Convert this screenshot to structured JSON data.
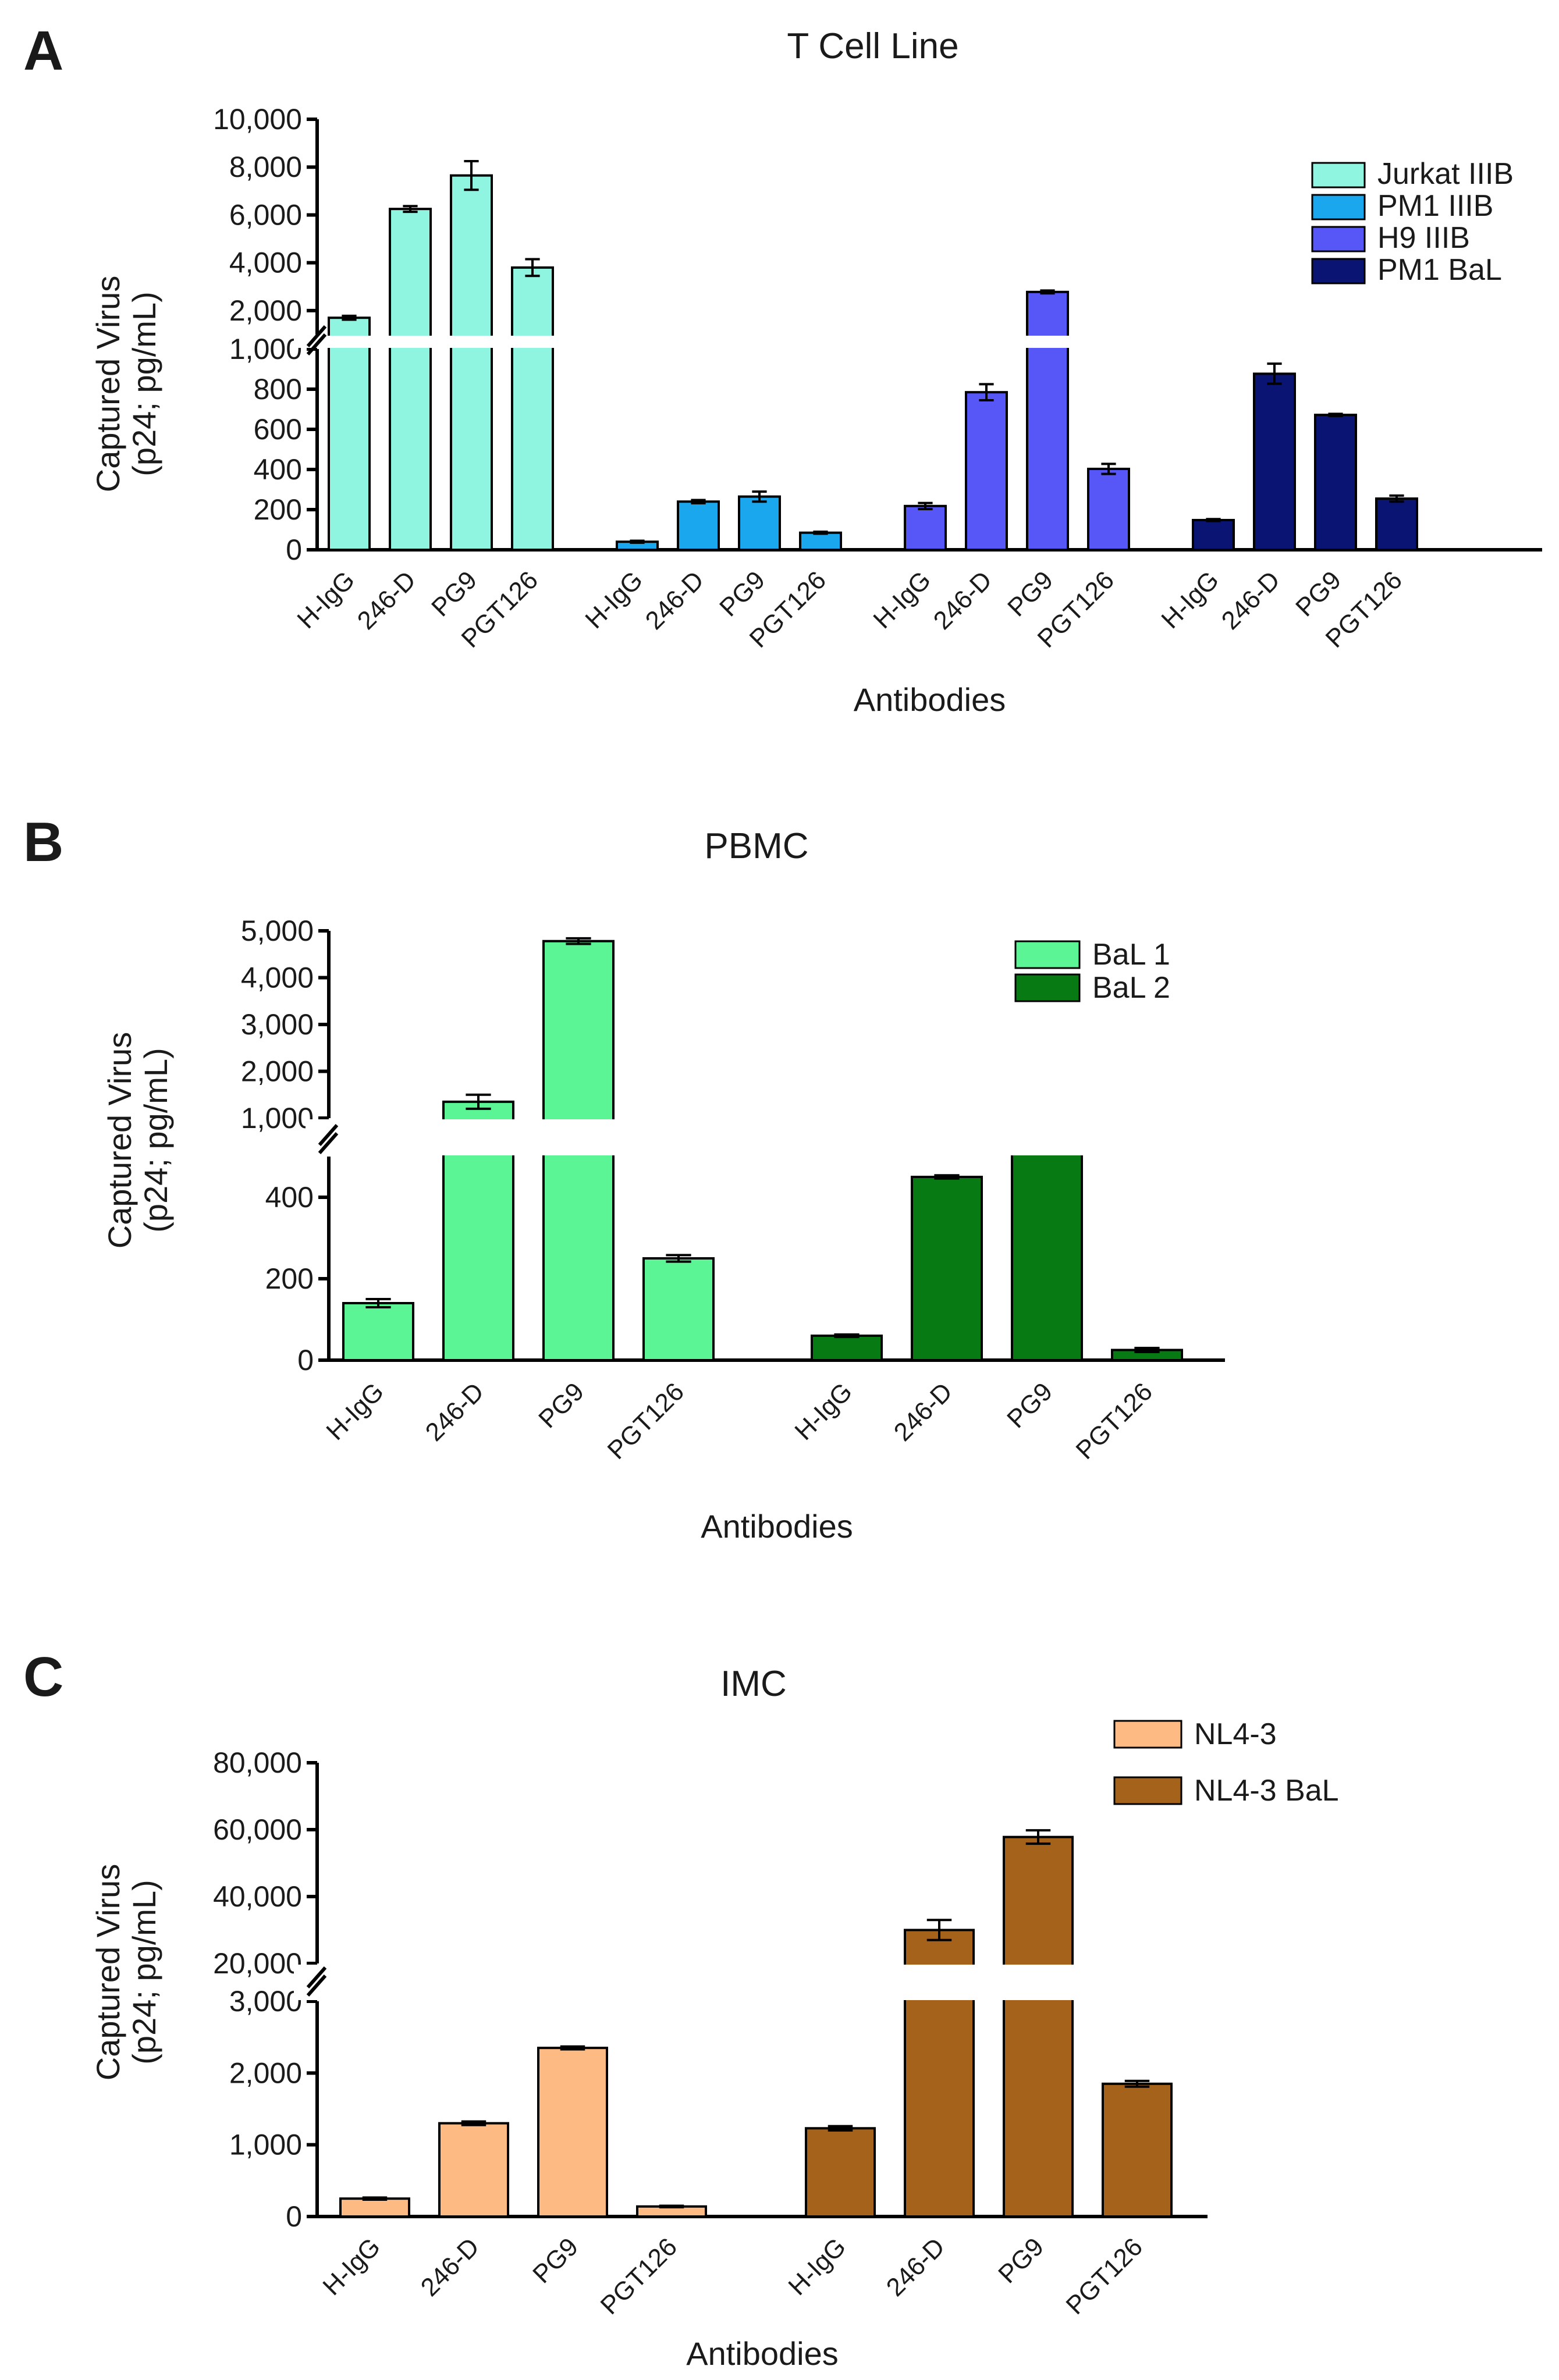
{
  "panels": [
    {
      "letter": "A",
      "title": "T Cell Line",
      "ylabel_line1": "Captured Virus",
      "ylabel_line2": "(p24; pg/mL)",
      "xlabel": "Antibodies",
      "categories": [
        "H-IgG",
        "246-D",
        "PG9",
        "PGT126"
      ],
      "lower_ticks": [
        "0",
        "200",
        "400",
        "600",
        "800",
        "1,000"
      ],
      "upper_ticks": [
        "2,000",
        "4,000",
        "6,000",
        "8,000",
        "10,000"
      ]
    },
    {
      "letter": "B",
      "title": "PBMC",
      "ylabel_line1": "Captured Virus",
      "ylabel_line2": "(p24; pg/mL)",
      "xlabel": "Antibodies",
      "categories": [
        "H-IgG",
        "246-D",
        "PG9",
        "PGT126"
      ],
      "lower_ticks": [
        "0",
        "200",
        "400"
      ],
      "upper_ticks": [
        "1,000",
        "2,000",
        "3,000",
        "4,000",
        "5,000"
      ]
    },
    {
      "letter": "C",
      "title": "IMC",
      "ylabel_line1": "Captured Virus",
      "ylabel_line2": "(p24; pg/mL)",
      "xlabel": "Antibodies",
      "categories": [
        "H-IgG",
        "246-D",
        "PG9",
        "PGT126"
      ],
      "lower_ticks": [
        "0",
        "1,000",
        "2,000",
        "3,000"
      ],
      "upper_ticks": [
        "20,000",
        "40,000",
        "60,000",
        "80,000"
      ]
    }
  ],
  "chart_data": [
    {
      "type": "bar",
      "title": "T Cell Line",
      "xlabel": "Antibodies",
      "ylabel": "Captured Virus (p24; pg/mL)",
      "categories": [
        "H-IgG",
        "246-D",
        "PG9",
        "PGT126"
      ],
      "axis_break": {
        "lower_range": [
          0,
          1000
        ],
        "upper_range": [
          1000,
          10000
        ]
      },
      "legend_position": "top-right",
      "series": [
        {
          "name": "Jurkat IIIB",
          "color": "#8FF5E0",
          "values": [
            1700,
            6250,
            7650,
            3800
          ],
          "errors": [
            80,
            120,
            600,
            350
          ]
        },
        {
          "name": "PM1 IIIB",
          "color": "#1BA7EE",
          "values": [
            40,
            240,
            265,
            85
          ],
          "errors": [
            5,
            8,
            25,
            5
          ]
        },
        {
          "name": "H9 IIIB",
          "color": "#5757F8",
          "values": [
            218,
            785,
            2780,
            403
          ],
          "errors": [
            15,
            40,
            60,
            25
          ]
        },
        {
          "name": "PM1 BaL",
          "color": "#0A1472",
          "values": [
            148,
            877,
            672,
            255
          ],
          "errors": [
            5,
            50,
            5,
            15
          ]
        }
      ]
    },
    {
      "type": "bar",
      "title": "PBMC",
      "xlabel": "Antibodies",
      "ylabel": "Captured Virus (p24; pg/mL)",
      "categories": [
        "H-IgG",
        "246-D",
        "PG9",
        "PGT126"
      ],
      "axis_break": {
        "lower_range": [
          0,
          500
        ],
        "upper_range": [
          1000,
          5000
        ]
      },
      "legend_position": "top-right",
      "series": [
        {
          "name": "BaL 1",
          "color": "#5BF596",
          "values": [
            140,
            1350,
            4780,
            250
          ],
          "errors": [
            10,
            150,
            60,
            8
          ]
        },
        {
          "name": "BaL 2",
          "color": "#077A14",
          "values": [
            60,
            450,
            930,
            25
          ],
          "errors": [
            3,
            4,
            15,
            5
          ]
        }
      ]
    },
    {
      "type": "bar",
      "title": "IMC",
      "xlabel": "Antibodies",
      "ylabel": "Captured Virus (p24; pg/mL)",
      "categories": [
        "H-IgG",
        "246-D",
        "PG9",
        "PGT126"
      ],
      "axis_break": {
        "lower_range": [
          0,
          3000
        ],
        "upper_range": [
          20000,
          80000
        ]
      },
      "legend_position": "top-right",
      "series": [
        {
          "name": "NL4-3",
          "color": "#FDBA82",
          "values": [
            250,
            1300,
            2350,
            140
          ],
          "errors": [
            15,
            25,
            20,
            10
          ]
        },
        {
          "name": "NL4-3 BaL",
          "color": "#A5621A",
          "values": [
            1230,
            30000,
            57800,
            1850
          ],
          "errors": [
            30,
            3000,
            2000,
            40
          ]
        }
      ]
    }
  ]
}
